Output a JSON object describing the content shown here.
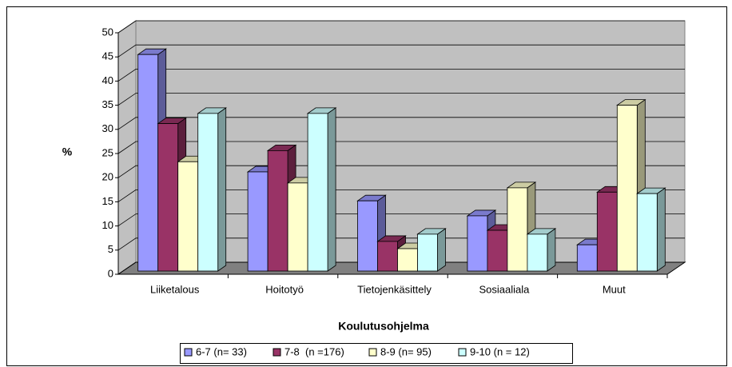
{
  "chart_data": {
    "type": "bar3d",
    "ylabel": "%",
    "xlabel": "Koulutusohjelma",
    "categories": [
      "Liiketalous",
      "Hoitotyö",
      "Tietojenkäsittely",
      "Sosiaaliala",
      "Muut"
    ],
    "series": [
      {
        "name": "6-7 (n= 33)",
        "color": "#9999ff",
        "values": [
          45.5,
          21.2,
          15.2,
          12.1,
          6.1
        ]
      },
      {
        "name": "7-8  (n =176)",
        "color": "#993366",
        "values": [
          31.2,
          25.6,
          6.8,
          9.1,
          17.0
        ]
      },
      {
        "name": "8-9 (n= 95)",
        "color": "#ffffcc",
        "values": [
          23.3,
          18.9,
          5.3,
          17.9,
          35.0
        ]
      },
      {
        "name": "9-10 (n = 12)",
        "color": "#ccffff",
        "values": [
          33.3,
          33.3,
          8.3,
          8.3,
          16.7
        ]
      }
    ],
    "ylim": [
      0,
      50
    ],
    "yticks": [
      0,
      5,
      10,
      15,
      20,
      25,
      30,
      35,
      40,
      45,
      50
    ],
    "grid": true,
    "legend": "bottom"
  }
}
